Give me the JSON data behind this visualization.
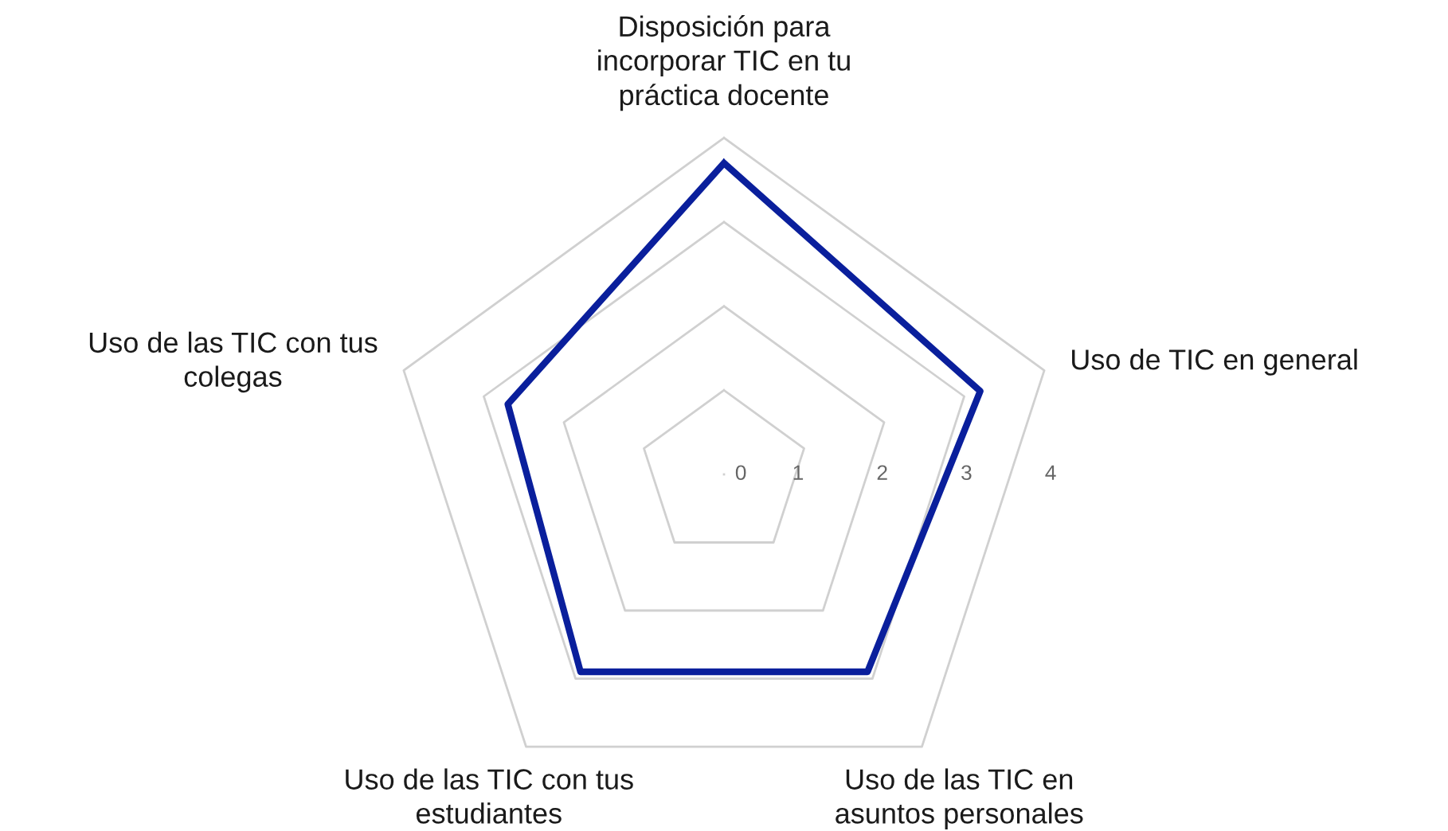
{
  "chart_data": {
    "type": "radar",
    "categories": [
      "Disposición para\nincorporar TIC en tu\npráctica docente",
      "Uso de TIC en general",
      "Uso de las TIC en\nasuntos personales",
      "Uso de las TIC con tus\nestudiantes",
      "Uso de las TIC con tus\ncolegas"
    ],
    "series": [
      {
        "color": "#0a1f9c",
        "values": [
          3.7,
          3.2,
          2.9,
          2.9,
          2.7
        ]
      }
    ],
    "ylim": [
      0,
      4
    ],
    "yticks": [
      0,
      1,
      2,
      3,
      4
    ],
    "grid": true,
    "marker": "none",
    "line_style": "solid"
  }
}
